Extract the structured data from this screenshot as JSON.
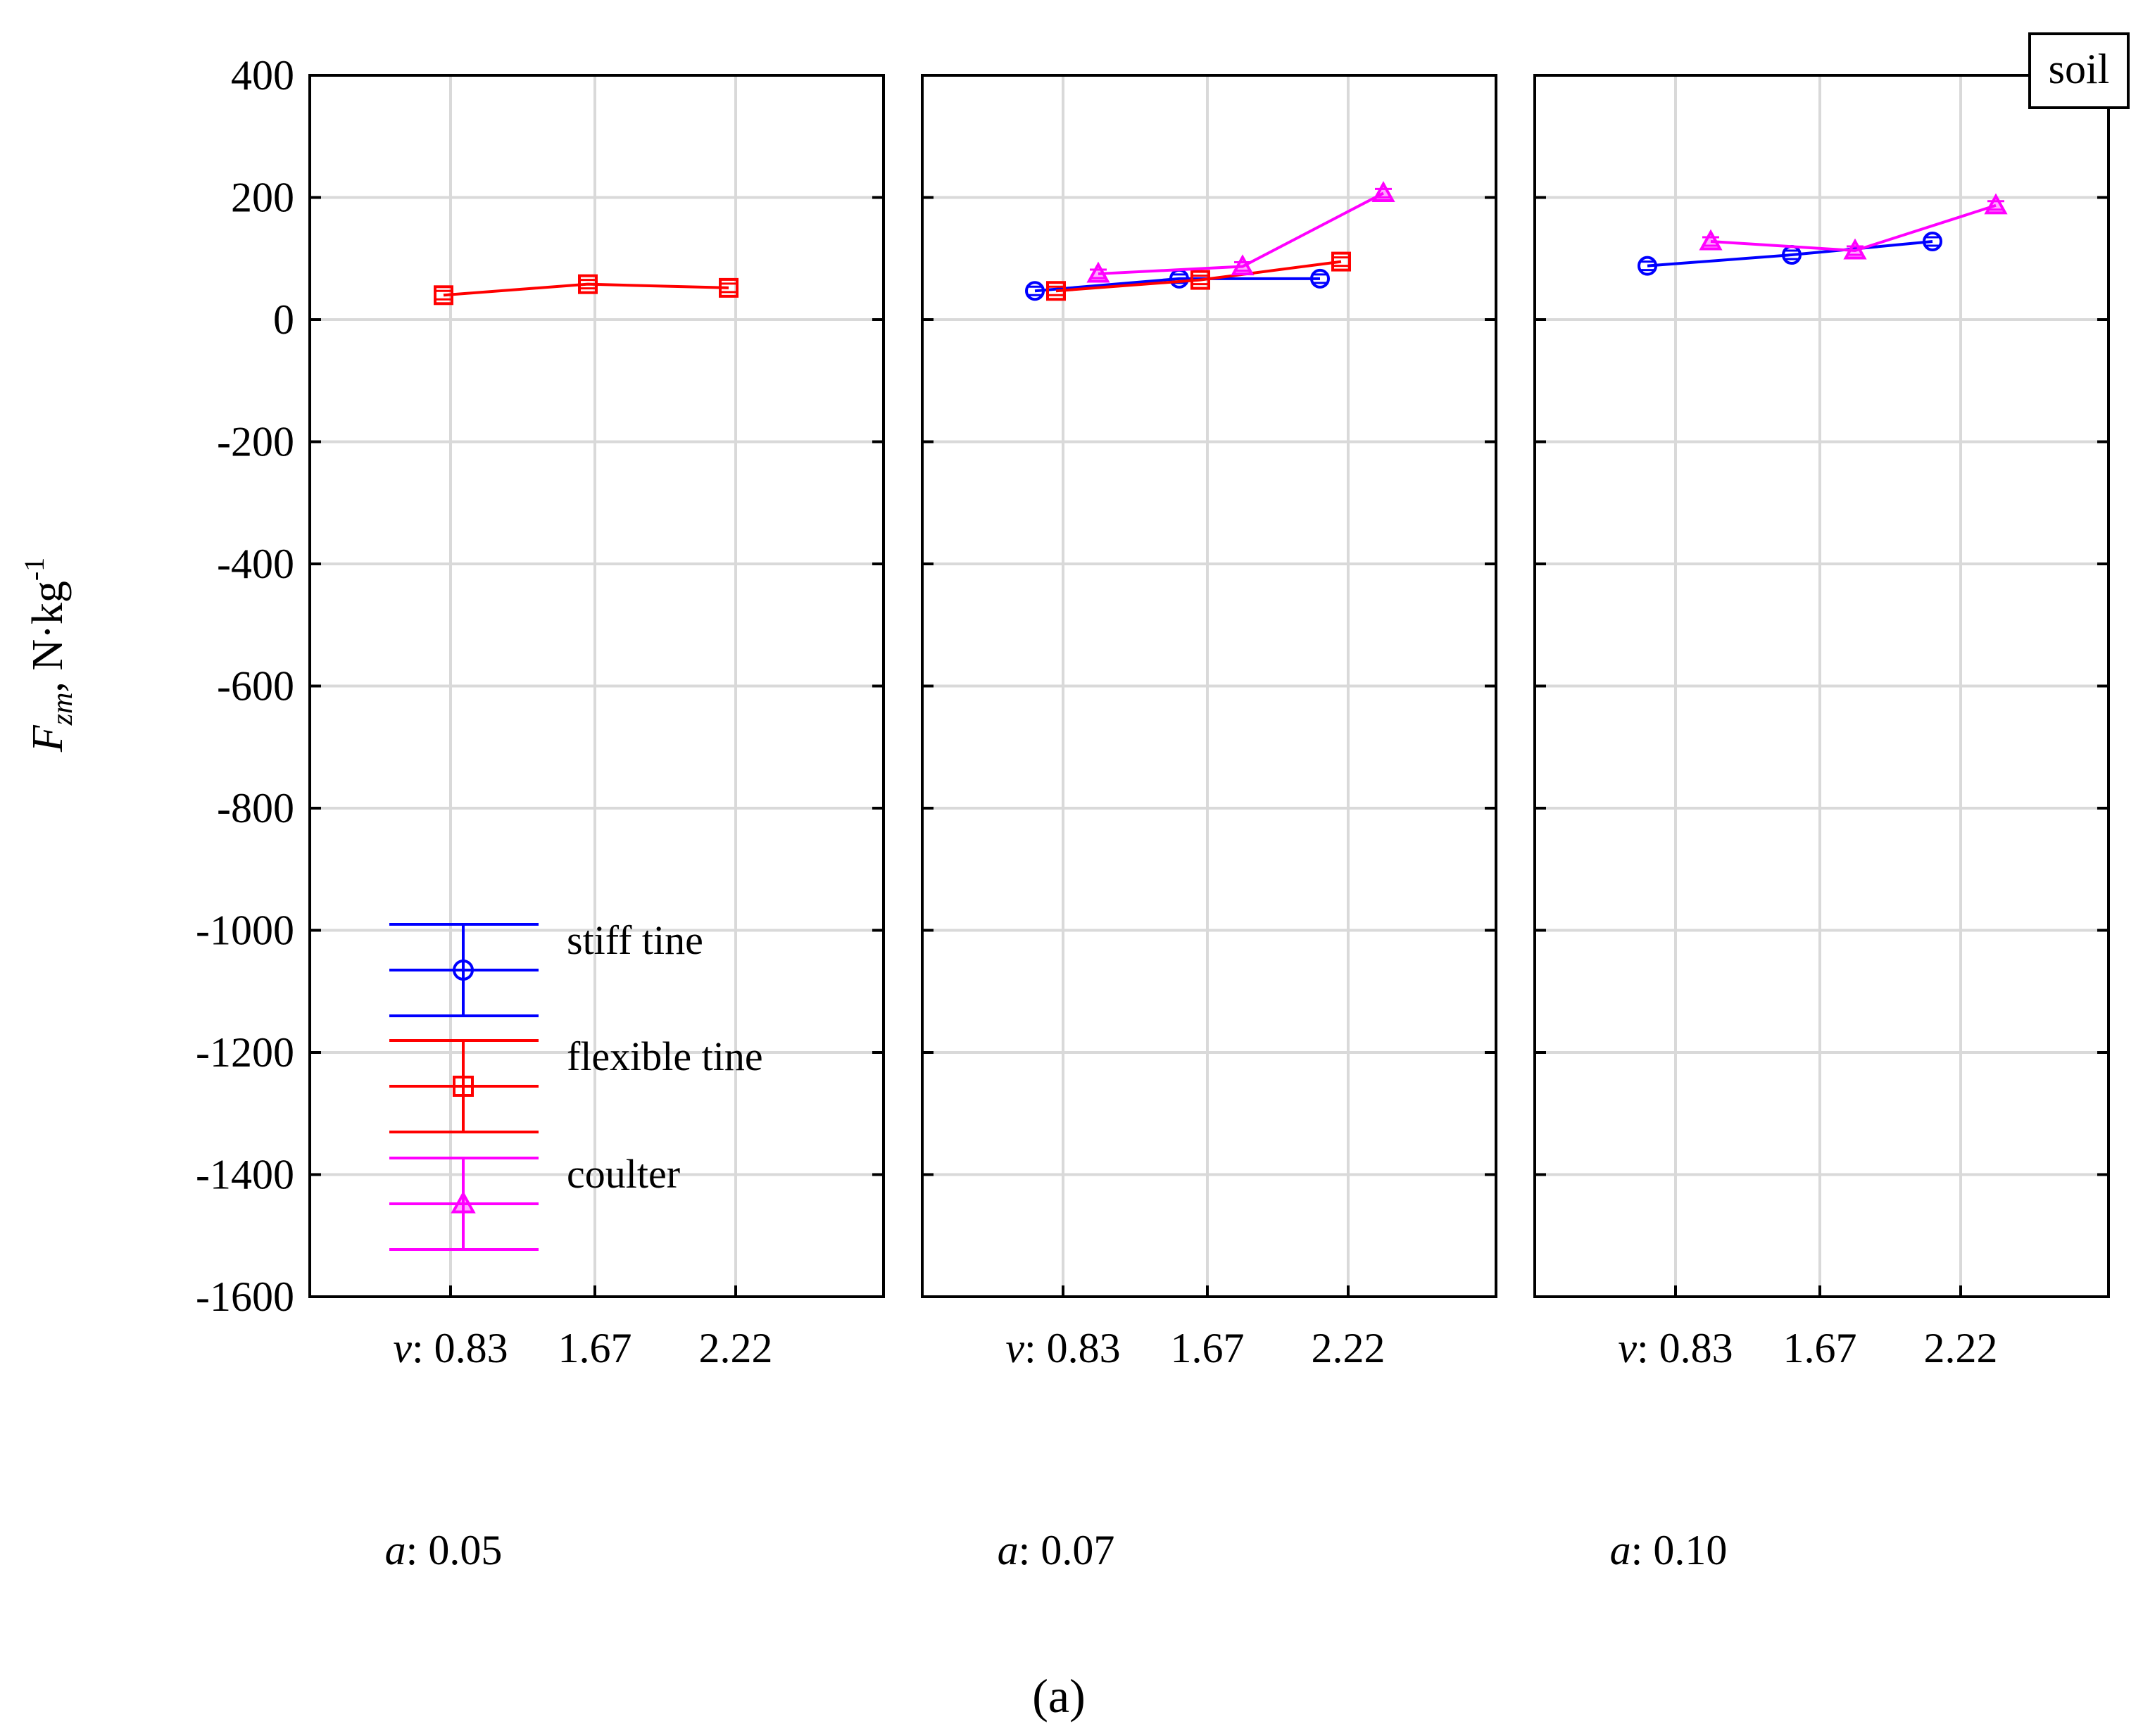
{
  "chart_data": {
    "type": "line",
    "ylabel": "F",
    "ylabel_sub": "zm",
    "ylabel_unit": ", N·kg",
    "ylabel_sup": "-1",
    "ylim": [
      -1600,
      400
    ],
    "yticks": [
      400,
      200,
      0,
      -200,
      -400,
      -600,
      -800,
      -1000,
      -1200,
      -1400,
      -1600
    ],
    "x_categories": [
      "0.83",
      "1.67",
      "2.22"
    ],
    "x_prefix": "v",
    "group_prefix": "a",
    "caption": "(a)",
    "box_label": "soil",
    "legend": [
      {
        "name": "stiff tine",
        "color": "#0000ff",
        "marker": "circle"
      },
      {
        "name": "flexible tine",
        "color": "#ff0000",
        "marker": "square"
      },
      {
        "name": "coulter",
        "color": "#ff00ff",
        "marker": "triangle"
      }
    ],
    "panels": [
      {
        "group_value": "0.05",
        "series": [
          {
            "name": "flexible tine",
            "values": [
              40,
              58,
              52
            ]
          }
        ]
      },
      {
        "group_value": "0.07",
        "series": [
          {
            "name": "stiff tine",
            "values": [
              47,
              67,
              67
            ]
          },
          {
            "name": "flexible tine",
            "values": [
              47,
              65,
              95
            ]
          },
          {
            "name": "coulter",
            "values": [
              75,
              87,
              207
            ]
          }
        ]
      },
      {
        "group_value": "0.10",
        "series": [
          {
            "name": "stiff tine",
            "values": [
              88,
              106,
              128
            ]
          },
          {
            "name": "coulter",
            "values": [
              128,
              113,
              187
            ]
          }
        ]
      }
    ]
  }
}
